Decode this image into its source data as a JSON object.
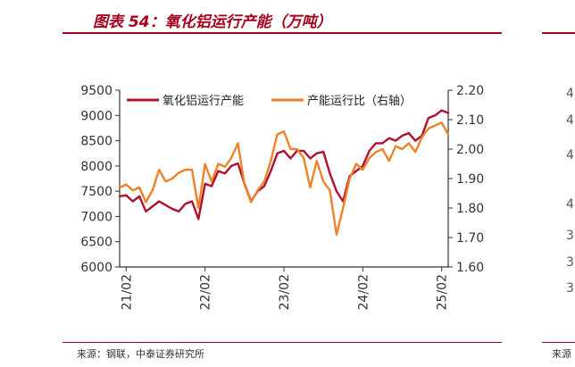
{
  "header": {
    "title": "图表 54：氧化铝运行产能（万吨）",
    "accent_color": "#a8001d"
  },
  "footer": {
    "source": "来源：钢联，中泰证券研究所",
    "right_source_fragment": "来源"
  },
  "right_panel": {
    "clipped_tick_digits": [
      "4",
      "4",
      "4",
      "4",
      "3",
      "3",
      "3"
    ]
  },
  "chart_data": {
    "type": "line",
    "title": "图表 54：氧化铝运行产能（万吨）",
    "xlabel": "",
    "ylabel": "",
    "x_ticks": [
      "21/02",
      "22/02",
      "23/02",
      "24/02",
      "25/02"
    ],
    "x_range": [
      "2021-01",
      "2025-03"
    ],
    "ylim": [
      6000,
      9500
    ],
    "y_ticks": [
      "9500",
      "9000",
      "8500",
      "8000",
      "7500",
      "7000",
      "6500",
      "6000"
    ],
    "y2lim": [
      1.6,
      2.2
    ],
    "y2_ticks": [
      "2.20",
      "2.10",
      "2.00",
      "1.90",
      "1.80",
      "1.70",
      "1.60"
    ],
    "grid": false,
    "legend_position": "top",
    "series": [
      {
        "name": "氧化铝运行产能",
        "axis": "left",
        "color": "#b0102e",
        "points": [
          [
            "2021-01",
            7400
          ],
          [
            "2021-02",
            7420
          ],
          [
            "2021-03",
            7300
          ],
          [
            "2021-04",
            7400
          ],
          [
            "2021-05",
            7100
          ],
          [
            "2021-07",
            7300
          ],
          [
            "2021-09",
            7150
          ],
          [
            "2021-10",
            7100
          ],
          [
            "2021-11",
            7250
          ],
          [
            "2021-12",
            7300
          ],
          [
            "2022-01",
            6950
          ],
          [
            "2022-02",
            7650
          ],
          [
            "2022-03",
            7600
          ],
          [
            "2022-04",
            7900
          ],
          [
            "2022-05",
            7850
          ],
          [
            "2022-06",
            8000
          ],
          [
            "2022-07",
            8050
          ],
          [
            "2022-08",
            7650
          ],
          [
            "2022-09",
            7300
          ],
          [
            "2022-10",
            7500
          ],
          [
            "2022-11",
            7600
          ],
          [
            "2022-12",
            7900
          ],
          [
            "2023-01",
            8250
          ],
          [
            "2023-02",
            8300
          ],
          [
            "2023-03",
            8150
          ],
          [
            "2023-04",
            8300
          ],
          [
            "2023-05",
            8300
          ],
          [
            "2023-06",
            8150
          ],
          [
            "2023-07",
            8250
          ],
          [
            "2023-08",
            8280
          ],
          [
            "2023-09",
            7850
          ],
          [
            "2023-10",
            7500
          ],
          [
            "2023-11",
            7300
          ],
          [
            "2023-12",
            7800
          ],
          [
            "2024-01",
            7900
          ],
          [
            "2024-02",
            8000
          ],
          [
            "2024-03",
            8300
          ],
          [
            "2024-04",
            8450
          ],
          [
            "2024-05",
            8450
          ],
          [
            "2024-06",
            8550
          ],
          [
            "2024-07",
            8500
          ],
          [
            "2024-08",
            8600
          ],
          [
            "2024-09",
            8650
          ],
          [
            "2024-10",
            8500
          ],
          [
            "2024-11",
            8600
          ],
          [
            "2024-12",
            8950
          ],
          [
            "2025-01",
            9000
          ],
          [
            "2025-02",
            9100
          ],
          [
            "2025-03",
            9050
          ]
        ]
      },
      {
        "name": "产能运行比（右轴）",
        "axis": "right",
        "color": "#ef8129",
        "points": [
          [
            "2021-01",
            1.87
          ],
          [
            "2021-02",
            1.88
          ],
          [
            "2021-03",
            1.86
          ],
          [
            "2021-04",
            1.87
          ],
          [
            "2021-05",
            1.82
          ],
          [
            "2021-06",
            1.86
          ],
          [
            "2021-07",
            1.93
          ],
          [
            "2021-08",
            1.89
          ],
          [
            "2021-09",
            1.9
          ],
          [
            "2021-10",
            1.92
          ],
          [
            "2021-11",
            1.93
          ],
          [
            "2021-12",
            1.93
          ],
          [
            "2022-01",
            1.8
          ],
          [
            "2022-02",
            1.95
          ],
          [
            "2022-03",
            1.89
          ],
          [
            "2022-04",
            1.95
          ],
          [
            "2022-05",
            1.94
          ],
          [
            "2022-06",
            1.97
          ],
          [
            "2022-07",
            2.02
          ],
          [
            "2022-08",
            1.88
          ],
          [
            "2022-09",
            1.82
          ],
          [
            "2022-10",
            1.86
          ],
          [
            "2022-11",
            1.89
          ],
          [
            "2022-12",
            1.96
          ],
          [
            "2023-01",
            2.05
          ],
          [
            "2023-02",
            2.06
          ],
          [
            "2023-03",
            2.0
          ],
          [
            "2023-04",
            2.0
          ],
          [
            "2023-05",
            1.97
          ],
          [
            "2023-06",
            1.87
          ],
          [
            "2023-07",
            1.96
          ],
          [
            "2023-08",
            1.89
          ],
          [
            "2023-09",
            1.86
          ],
          [
            "2023-10",
            1.71
          ],
          [
            "2023-11",
            1.8
          ],
          [
            "2023-12",
            1.9
          ],
          [
            "2024-01",
            1.95
          ],
          [
            "2024-02",
            1.93
          ],
          [
            "2024-03",
            1.97
          ],
          [
            "2024-04",
            1.99
          ],
          [
            "2024-05",
            2.0
          ],
          [
            "2024-06",
            1.96
          ],
          [
            "2024-07",
            2.01
          ],
          [
            "2024-08",
            2.0
          ],
          [
            "2024-09",
            2.02
          ],
          [
            "2024-10",
            1.99
          ],
          [
            "2024-11",
            2.04
          ],
          [
            "2024-12",
            2.07
          ],
          [
            "2025-01",
            2.08
          ],
          [
            "2025-02",
            2.09
          ],
          [
            "2025-03",
            2.05
          ]
        ]
      }
    ]
  }
}
